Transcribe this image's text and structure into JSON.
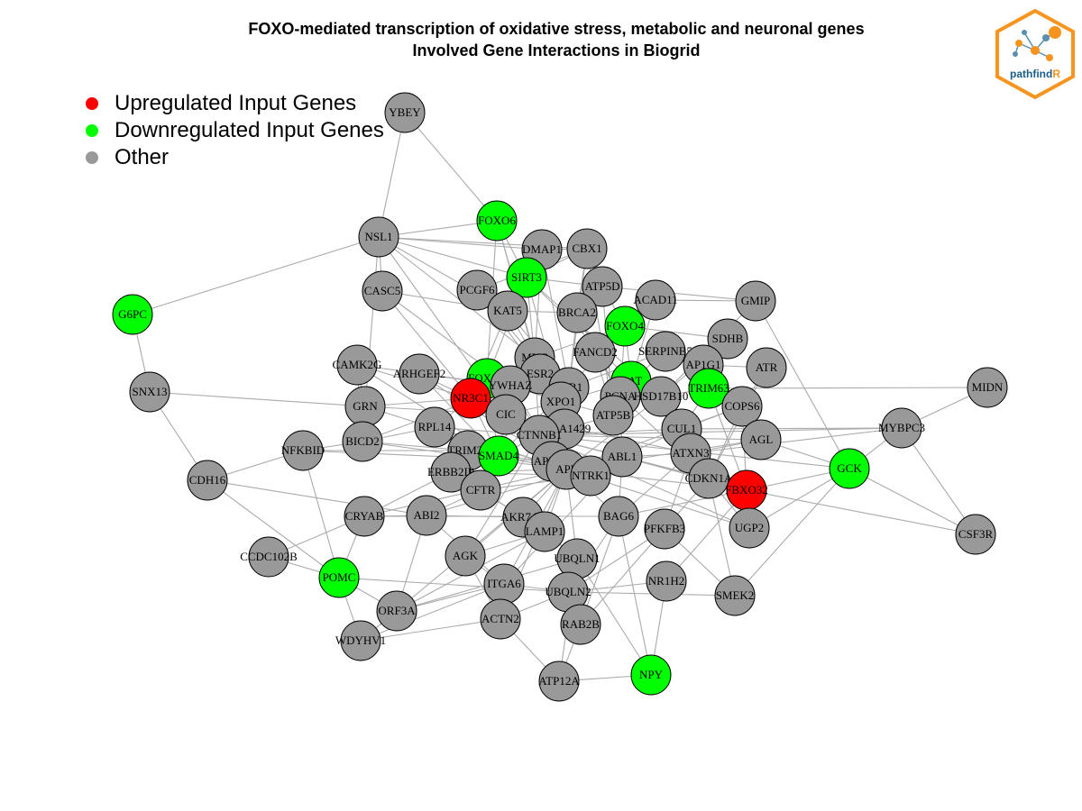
{
  "title": {
    "line1": "FOXO-mediated transcription of oxidative stress, metabolic and neuronal genes",
    "line2": "Involved Gene Interactions in Biogrid"
  },
  "legend": {
    "items": [
      {
        "label": "Upregulated Input Genes",
        "color": "#ff0000"
      },
      {
        "label": "Downregulated Input Genes",
        "color": "#00ff00"
      },
      {
        "label": "Other",
        "color": "#999999"
      }
    ]
  },
  "logo": {
    "text_main": "pathfind",
    "text_accent": "R",
    "accent_color": "#f7941d",
    "main_color": "#1a5e8a"
  },
  "colors": {
    "up": "#ff0000",
    "down": "#00ff00",
    "other": "#999999",
    "edge": "#aaaaaa"
  },
  "nodes": [
    {
      "label": "YBEY",
      "type": "other"
    },
    {
      "label": "FOXO6",
      "type": "down"
    },
    {
      "label": "NSL1",
      "type": "other"
    },
    {
      "label": "DMAP1",
      "type": "other"
    },
    {
      "label": "CBX1",
      "type": "other"
    },
    {
      "label": "SIRT3",
      "type": "down"
    },
    {
      "label": "ATP5D",
      "type": "other"
    },
    {
      "label": "CASC5",
      "type": "other"
    },
    {
      "label": "PCGF6",
      "type": "other"
    },
    {
      "label": "KAT5",
      "type": "other"
    },
    {
      "label": "BRCA2",
      "type": "other"
    },
    {
      "label": "ACAD11",
      "type": "other"
    },
    {
      "label": "GMIP",
      "type": "other"
    },
    {
      "label": "G6PC",
      "type": "down"
    },
    {
      "label": "FOXO4",
      "type": "down"
    },
    {
      "label": "SDHB",
      "type": "other"
    },
    {
      "label": "MYC",
      "type": "other"
    },
    {
      "label": "FANCD2",
      "type": "other"
    },
    {
      "label": "SERPINB5",
      "type": "other"
    },
    {
      "label": "CAMK2G",
      "type": "other"
    },
    {
      "label": "ARHGEF2",
      "type": "other"
    },
    {
      "label": "FOXO3",
      "type": "down"
    },
    {
      "label": "ESR2",
      "type": "other"
    },
    {
      "label": "AP1G1",
      "type": "other"
    },
    {
      "label": "ATR",
      "type": "other"
    },
    {
      "label": "CAT",
      "type": "down"
    },
    {
      "label": "TRIM63",
      "type": "down"
    },
    {
      "label": "SNX13",
      "type": "other"
    },
    {
      "label": "NR3C1",
      "type": "up"
    },
    {
      "label": "YWHAZ",
      "type": "other"
    },
    {
      "label": "ESR1",
      "type": "other"
    },
    {
      "label": "PCNA",
      "type": "other"
    },
    {
      "label": "HSD17B10",
      "type": "other"
    },
    {
      "label": "COPS6",
      "type": "other"
    },
    {
      "label": "MIDN",
      "type": "other"
    },
    {
      "label": "GRN",
      "type": "other"
    },
    {
      "label": "XPO1",
      "type": "other"
    },
    {
      "label": "CIC",
      "type": "other"
    },
    {
      "label": "RPL14",
      "type": "other"
    },
    {
      "label": "ATP5B",
      "type": "other"
    },
    {
      "label": "CUL1",
      "type": "other"
    },
    {
      "label": "MYBPC3",
      "type": "other"
    },
    {
      "label": "BICD2",
      "type": "other"
    },
    {
      "label": "KIAA1429",
      "type": "other"
    },
    {
      "label": "CTNNB1",
      "type": "other"
    },
    {
      "label": "AGL",
      "type": "other"
    },
    {
      "label": "NFKBID",
      "type": "other"
    },
    {
      "label": "TRIM25",
      "type": "other"
    },
    {
      "label": "SMAD4",
      "type": "down"
    },
    {
      "label": "ABL1",
      "type": "other"
    },
    {
      "label": "ATXN3",
      "type": "other"
    },
    {
      "label": "APEX1",
      "type": "other"
    },
    {
      "label": "GCK",
      "type": "down"
    },
    {
      "label": "CDH16",
      "type": "other"
    },
    {
      "label": "ERBB2IP",
      "type": "other"
    },
    {
      "label": "APP",
      "type": "other"
    },
    {
      "label": "NTRK1",
      "type": "other"
    },
    {
      "label": "CDKN1A",
      "type": "other"
    },
    {
      "label": "FBXO32",
      "type": "up"
    },
    {
      "label": "CFTR",
      "type": "other"
    },
    {
      "label": "CRYAB",
      "type": "other"
    },
    {
      "label": "ABI2",
      "type": "other"
    },
    {
      "label": "AKR7A2",
      "type": "other"
    },
    {
      "label": "BAG6",
      "type": "other"
    },
    {
      "label": "PFKFB3",
      "type": "other"
    },
    {
      "label": "UGP2",
      "type": "other"
    },
    {
      "label": "CSF3R",
      "type": "other"
    },
    {
      "label": "LAMP1",
      "type": "other"
    },
    {
      "label": "CCDC102B",
      "type": "other"
    },
    {
      "label": "AGK",
      "type": "other"
    },
    {
      "label": "UBQLN1",
      "type": "other"
    },
    {
      "label": "POMC",
      "type": "down"
    },
    {
      "label": "ITGA6",
      "type": "other"
    },
    {
      "label": "NR1H2",
      "type": "other"
    },
    {
      "label": "UBQLN2",
      "type": "other"
    },
    {
      "label": "SMEK2",
      "type": "other"
    },
    {
      "label": "ORF3A",
      "type": "other"
    },
    {
      "label": "ACTN2",
      "type": "other"
    },
    {
      "label": "RAB2B",
      "type": "other"
    },
    {
      "label": "WDYHV1",
      "type": "other"
    },
    {
      "label": "NPY",
      "type": "down"
    },
    {
      "label": "ATP12A",
      "type": "other"
    }
  ],
  "edges": [
    [
      "YBEY",
      "NSL1"
    ],
    [
      "YBEY",
      "FOXO6"
    ],
    [
      "G6PC",
      "NSL1"
    ],
    [
      "G6PC",
      "SNX13"
    ],
    [
      "SNX13",
      "CDH16"
    ],
    [
      "SNX13",
      "GRN"
    ],
    [
      "CDH16",
      "POMC"
    ],
    [
      "CDH16",
      "NFKBID"
    ],
    [
      "CDH16",
      "ABI2"
    ],
    [
      "CCDC102B",
      "POMC"
    ],
    [
      "CCDC102B",
      "CRYAB"
    ],
    [
      "POMC",
      "WDYHV1"
    ],
    [
      "POMC",
      "NFKBID"
    ],
    [
      "POMC",
      "ORF3A"
    ],
    [
      "POMC",
      "UBQLN2"
    ],
    [
      "POMC",
      "CRYAB"
    ],
    [
      "WDYHV1",
      "ORF3A"
    ],
    [
      "WDYHV1",
      "ACTN2"
    ],
    [
      "WDYHV1",
      "ITGA6"
    ],
    [
      "ORF3A",
      "ITGA6"
    ],
    [
      "ORF3A",
      "UBQLN1"
    ],
    [
      "ORF3A",
      "ABI2"
    ],
    [
      "ORF3A",
      "LAMP1"
    ],
    [
      "ACTN2",
      "UBQLN2"
    ],
    [
      "ACTN2",
      "ITGA6"
    ],
    [
      "ACTN2",
      "ATP12A"
    ],
    [
      "ATP12A",
      "NPY"
    ],
    [
      "ATP12A",
      "RAB2B"
    ],
    [
      "ATP12A",
      "UBQLN1"
    ],
    [
      "NPY",
      "NR1H2"
    ],
    [
      "NPY",
      "BAG6"
    ],
    [
      "NPY",
      "UBQLN1"
    ],
    [
      "RAB2B",
      "UBQLN1"
    ],
    [
      "RAB2B",
      "PFKFB3"
    ],
    [
      "RAB2B",
      "BAG6"
    ],
    [
      "SMEK2",
      "GCK"
    ],
    [
      "SMEK2",
      "PFKFB3"
    ],
    [
      "SMEK2",
      "CDKN1A"
    ],
    [
      "SMEK2",
      "UBQLN2"
    ],
    [
      "NR1H2",
      "UBQLN2"
    ],
    [
      "NR1H2",
      "FBXO32"
    ],
    [
      "GCK",
      "FBXO32"
    ],
    [
      "GCK",
      "UGP2"
    ],
    [
      "GCK",
      "CSF3R"
    ],
    [
      "GCK",
      "GMIP"
    ],
    [
      "GCK",
      "AGL"
    ],
    [
      "GCK",
      "MYBPC3"
    ],
    [
      "MYBPC3",
      "CUL1"
    ],
    [
      "MYBPC3",
      "MIDN"
    ],
    [
      "MYBPC3",
      "CSF3R"
    ],
    [
      "MIDN",
      "TRIM63"
    ],
    [
      "MYBPC3",
      "ATXN3"
    ],
    [
      "CSF3R",
      "FBXO32"
    ],
    [
      "UGP2",
      "FBXO32"
    ],
    [
      "UGP2",
      "CDKN1A"
    ],
    [
      "UGP2",
      "CTNNB1"
    ],
    [
      "FBXO32",
      "CDKN1A"
    ],
    [
      "FBXO32",
      "COPS6"
    ],
    [
      "FBXO32",
      "TRIM63"
    ],
    [
      "FBXO32",
      "ABL1"
    ],
    [
      "FBXO32",
      "BAG6"
    ],
    [
      "FBXO32",
      "APP"
    ],
    [
      "GMIP",
      "ATP5D"
    ],
    [
      "GMIP",
      "ACAD11"
    ],
    [
      "GMIP",
      "HSD17B10"
    ],
    [
      "NSL1",
      "CASC5"
    ],
    [
      "NSL1",
      "FOXO6"
    ],
    [
      "NSL1",
      "DMAP1"
    ],
    [
      "NSL1",
      "KAT5"
    ],
    [
      "NSL1",
      "SIRT3"
    ],
    [
      "NSL1",
      "CBX1"
    ],
    [
      "NSL1",
      "GRN"
    ],
    [
      "NSL1",
      "CIC"
    ],
    [
      "FOXO6",
      "SIRT3"
    ],
    [
      "FOXO6",
      "FOXO3"
    ],
    [
      "FOXO6",
      "MYC"
    ],
    [
      "CASC5",
      "NR3C1"
    ],
    [
      "CASC5",
      "YWHAZ"
    ],
    [
      "DMAP1",
      "KAT5"
    ],
    [
      "DMAP1",
      "MYC"
    ],
    [
      "DMAP1",
      "CBX1"
    ],
    [
      "CBX1",
      "BRCA2"
    ],
    [
      "CBX1",
      "SIRT3"
    ],
    [
      "CBX1",
      "ESR1"
    ],
    [
      "SIRT3",
      "ATP5D"
    ],
    [
      "SIRT3",
      "FOXO3"
    ],
    [
      "SIRT3",
      "HSD17B10"
    ],
    [
      "SIRT3",
      "XPO1"
    ],
    [
      "SIRT3",
      "CAT"
    ],
    [
      "PCGF6",
      "MYC"
    ],
    [
      "PCGF6",
      "KAT5"
    ],
    [
      "PCGF6",
      "CBX1"
    ],
    [
      "KAT5",
      "MYC"
    ],
    [
      "KAT5",
      "BRCA2"
    ],
    [
      "KAT5",
      "ESR1"
    ],
    [
      "BRCA2",
      "FANCD2"
    ],
    [
      "BRCA2",
      "ESR1"
    ],
    [
      "BRCA2",
      "PCNA"
    ],
    [
      "ATP5D",
      "ATP5B"
    ],
    [
      "ATP5D",
      "FOXO4"
    ],
    [
      "ACAD11",
      "CAT"
    ],
    [
      "FOXO4",
      "SDHB"
    ],
    [
      "FOXO4",
      "ESR1"
    ],
    [
      "FOXO4",
      "PCNA"
    ],
    [
      "FOXO4",
      "MYC"
    ],
    [
      "FOXO4",
      "CAT"
    ],
    [
      "SERPINB5",
      "ESR1"
    ],
    [
      "SERPINB5",
      "AP1G1"
    ],
    [
      "SDHB",
      "AP1G1"
    ],
    [
      "SDHB",
      "HSD17B10"
    ],
    [
      "ATR",
      "COPS6"
    ],
    [
      "ATR",
      "CDKN1A"
    ],
    [
      "AP1G1",
      "COPS6"
    ],
    [
      "TRIM63",
      "COPS6"
    ],
    [
      "TRIM63",
      "CUL1"
    ],
    [
      "COPS6",
      "AGL"
    ],
    [
      "COPS6",
      "CUL1"
    ],
    [
      "COPS6",
      "CDKN1A"
    ],
    [
      "CUL1",
      "CTNNB1"
    ],
    [
      "CUL1",
      "ABL1"
    ],
    [
      "CUL1",
      "CDKN1A"
    ],
    [
      "AGL",
      "CTNNB1"
    ],
    [
      "AGL",
      "ATXN3"
    ],
    [
      "CAT",
      "XPO1"
    ],
    [
      "CAT",
      "PCNA"
    ],
    [
      "PCNA",
      "CDKN1A"
    ],
    [
      "PCNA",
      "ABL1"
    ],
    [
      "HSD17B10",
      "APP"
    ],
    [
      "HSD17B10",
      "ATXN3"
    ],
    [
      "ESR1",
      "ESR2"
    ],
    [
      "ESR1",
      "CTNNB1"
    ],
    [
      "ESR1",
      "XPO1"
    ],
    [
      "ESR1",
      "SMAD4"
    ],
    [
      "ESR1",
      "NR3C1"
    ],
    [
      "ESR1",
      "APP"
    ],
    [
      "MYC",
      "CTNNB1"
    ],
    [
      "MYC",
      "SMAD4"
    ],
    [
      "MYC",
      "KIAA1429"
    ],
    [
      "FANCD2",
      "ATP5B"
    ],
    [
      "FANCD2",
      "PCNA"
    ],
    [
      "CAMK2G",
      "YWHAZ"
    ],
    [
      "CAMK2G",
      "GRN"
    ],
    [
      "CAMK2G",
      "BICD2"
    ],
    [
      "CAMK2G",
      "NR3C1"
    ],
    [
      "ARHGEF2",
      "YWHAZ"
    ],
    [
      "ARHGEF2",
      "NR3C1"
    ],
    [
      "ARHGEF2",
      "APP"
    ],
    [
      "GRN",
      "NR3C1"
    ],
    [
      "GRN",
      "BICD2"
    ],
    [
      "GRN",
      "CIC"
    ],
    [
      "GRN",
      "APP"
    ],
    [
      "NR3C1",
      "FOXO3"
    ],
    [
      "NR3C1",
      "YWHAZ"
    ],
    [
      "NR3C1",
      "SMAD4"
    ],
    [
      "NR3C1",
      "CTNNB1"
    ],
    [
      "NR3C1",
      "RPL14"
    ],
    [
      "FOXO3",
      "YWHAZ"
    ],
    [
      "FOXO3",
      "ESR1"
    ],
    [
      "FOXO3",
      "SMAD4"
    ],
    [
      "FOXO3",
      "XPO1"
    ],
    [
      "YWHAZ",
      "CTNNB1"
    ],
    [
      "YWHAZ",
      "APP"
    ],
    [
      "YWHAZ",
      "BICD2"
    ],
    [
      "CIC",
      "ATXN3"
    ],
    [
      "CIC",
      "XPO1"
    ],
    [
      "RPL14",
      "APP"
    ],
    [
      "RPL14",
      "BICD2"
    ],
    [
      "RPL14",
      "TRIM25"
    ],
    [
      "BICD2",
      "NFKBID"
    ],
    [
      "BICD2",
      "TRIM25"
    ],
    [
      "BICD2",
      "APP"
    ],
    [
      "NFKBID",
      "TRIM25"
    ],
    [
      "NFKBID",
      "APEX1"
    ],
    [
      "TRIM25",
      "APP"
    ],
    [
      "TRIM25",
      "SMAD4"
    ],
    [
      "SMAD4",
      "CTNNB1"
    ],
    [
      "SMAD4",
      "ERBB2IP"
    ],
    [
      "SMAD4",
      "CFTR"
    ],
    [
      "SMAD4",
      "APEX1"
    ],
    [
      "ERBB2IP",
      "CFTR"
    ],
    [
      "ERBB2IP",
      "CRYAB"
    ],
    [
      "ERBB2IP",
      "APP"
    ],
    [
      "CFTR",
      "NTRK1"
    ],
    [
      "CFTR",
      "AKR7A2"
    ],
    [
      "CFTR",
      "ABI2"
    ],
    [
      "CRYAB",
      "APP"
    ],
    [
      "CRYAB",
      "ABI2"
    ],
    [
      "CRYAB",
      "BAG6"
    ],
    [
      "ABI2",
      "ABL1"
    ],
    [
      "ABI2",
      "ITGA6"
    ],
    [
      "ABI2",
      "AKR7A2"
    ],
    [
      "AKR7A2",
      "LAMP1"
    ],
    [
      "AKR7A2",
      "APP"
    ],
    [
      "AGK",
      "APP"
    ],
    [
      "AGK",
      "LAMP1"
    ],
    [
      "AGK",
      "CTNNB1"
    ],
    [
      "AGK",
      "ACTN2"
    ],
    [
      "LAMP1",
      "APP"
    ],
    [
      "LAMP1",
      "UBQLN1"
    ],
    [
      "ITGA6",
      "APP"
    ],
    [
      "ITGA6",
      "ABL1"
    ],
    [
      "ITGA6",
      "UBQLN2"
    ],
    [
      "UBQLN1",
      "UBQLN2"
    ],
    [
      "UBQLN1",
      "APP"
    ],
    [
      "UBQLN2",
      "BAG6"
    ],
    [
      "UBQLN2",
      "PFKFB3"
    ],
    [
      "BAG6",
      "APP"
    ],
    [
      "BAG6",
      "ABL1"
    ],
    [
      "BAG6",
      "ATXN3"
    ],
    [
      "PFKFB3",
      "CDKN1A"
    ],
    [
      "PFKFB3",
      "ATXN3"
    ],
    [
      "NTRK1",
      "APP"
    ],
    [
      "NTRK1",
      "ABL1"
    ],
    [
      "NTRK1",
      "CTNNB1"
    ],
    [
      "APEX1",
      "APP"
    ],
    [
      "APEX1",
      "CTNNB1"
    ],
    [
      "APP",
      "ABL1"
    ],
    [
      "APP",
      "CTNNB1"
    ],
    [
      "APP",
      "KIAA1429"
    ],
    [
      "KIAA1429",
      "CTNNB1"
    ],
    [
      "KIAA1429",
      "ATP5B"
    ],
    [
      "ATP5B",
      "ABL1"
    ],
    [
      "ATP5B",
      "PCNA"
    ],
    [
      "ABL1",
      "ATXN3"
    ],
    [
      "ABL1",
      "CDKN1A"
    ],
    [
      "ATXN3",
      "CDKN1A"
    ],
    [
      "XPO1",
      "CTNNB1"
    ],
    [
      "XPO1",
      "ATP5B"
    ],
    [
      "CTNNB1",
      "ABL1"
    ],
    [
      "CTNNB1",
      "CDKN1A"
    ],
    [
      "PCGF6",
      "ESR2"
    ],
    [
      "CASC5",
      "KAT5"
    ],
    [
      "DMAP1",
      "ESR1"
    ],
    [
      "SIRT3",
      "MYC"
    ],
    [
      "CBX1",
      "ATP5B"
    ],
    [
      "FOXO6",
      "ESR2"
    ],
    [
      "NSL1",
      "MYC"
    ],
    [
      "CAMK2G",
      "SMAD4"
    ],
    [
      "ARHGEF2",
      "SMAD4"
    ],
    [
      "ATR",
      "AP1G1"
    ],
    [
      "SERPINB5",
      "CAT"
    ],
    [
      "KAT5",
      "NR3C1"
    ],
    [
      "MYC",
      "ESR2"
    ],
    [
      "ESR2",
      "XPO1"
    ],
    [
      "CIC",
      "SMAD4"
    ],
    [
      "RPL14",
      "CTNNB1"
    ],
    [
      "ERBB2IP",
      "NTRK1"
    ],
    [
      "CFTR",
      "LAMP1"
    ],
    [
      "AGK",
      "ITGA6"
    ],
    [
      "ACTN2",
      "APP"
    ],
    [
      "WDYHV1",
      "APP"
    ],
    [
      "UGP2",
      "APP"
    ],
    [
      "MYBPC3",
      "CTNNB1"
    ],
    [
      "GCK",
      "CTNNB1"
    ],
    [
      "AGL",
      "APP"
    ],
    [
      "COPS6",
      "APP"
    ],
    [
      "TRIM63",
      "HSD17B10"
    ]
  ]
}
